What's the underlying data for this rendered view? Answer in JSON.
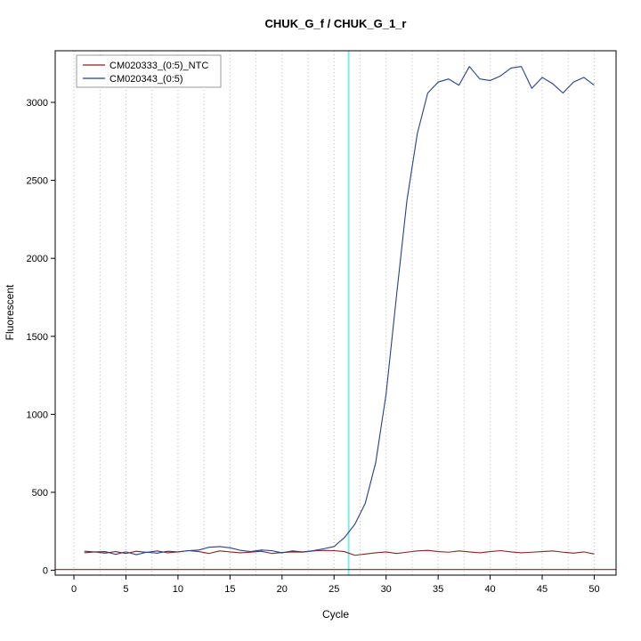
{
  "chart_data": {
    "type": "line",
    "title": "CHUK_G_f / CHUK_G_1_r",
    "xlabel": "Cycle",
    "ylabel": "Fluorescent",
    "xlim": [
      -1.8,
      52.1
    ],
    "ylim": [
      -31,
      3331
    ],
    "x_ticks": [
      0,
      5,
      10,
      15,
      20,
      25,
      30,
      35,
      40,
      45,
      50
    ],
    "y_ticks": [
      0,
      500,
      1000,
      1500,
      2000,
      2500,
      3000
    ],
    "grid": {
      "vertical_start": 0,
      "vertical_end": 50,
      "vertical_step": 2.5,
      "style": "dotted",
      "color": "#b8b8b8"
    },
    "threshold_cycle_line": {
      "x": 26.4,
      "color": "#7deeee"
    },
    "baseline_line": {
      "y": 5,
      "color": "#8b2323"
    },
    "x": [
      1,
      2,
      3,
      4,
      5,
      6,
      7,
      8,
      9,
      10,
      11,
      12,
      13,
      14,
      15,
      16,
      17,
      18,
      19,
      20,
      21,
      22,
      23,
      24,
      25,
      26,
      27,
      28,
      29,
      30,
      31,
      32,
      33,
      34,
      35,
      36,
      37,
      38,
      39,
      40,
      41,
      42,
      43,
      44,
      45,
      46,
      47,
      48,
      49,
      50
    ],
    "series": [
      {
        "name": "CM020333_(0:5)_NTC",
        "color": "#8b2323",
        "values": [
          112,
          118,
          110,
          120,
          108,
          122,
          115,
          124,
          112,
          118,
          126,
          120,
          108,
          124,
          118,
          112,
          116,
          122,
          108,
          114,
          118,
          116,
          124,
          128,
          126,
          120,
          96,
          104,
          112,
          118,
          108,
          116,
          124,
          128,
          120,
          116,
          124,
          118,
          112,
          120,
          126,
          118,
          112,
          116,
          120,
          124,
          116,
          110,
          118,
          104
        ]
      },
      {
        "name": "CM020343_(0:5)",
        "color": "#27408b",
        "values": [
          122,
          118,
          120,
          102,
          118,
          100,
          116,
          110,
          122,
          118,
          126,
          130,
          148,
          152,
          144,
          128,
          120,
          130,
          126,
          112,
          124,
          118,
          126,
          138,
          152,
          210,
          295,
          430,
          690,
          1130,
          1760,
          2370,
          2800,
          3060,
          3130,
          3150,
          3110,
          3230,
          3150,
          3140,
          3170,
          3220,
          3230,
          3090,
          3160,
          3120,
          3060,
          3130,
          3160,
          3110
        ]
      }
    ],
    "legend_position": "top-left"
  }
}
